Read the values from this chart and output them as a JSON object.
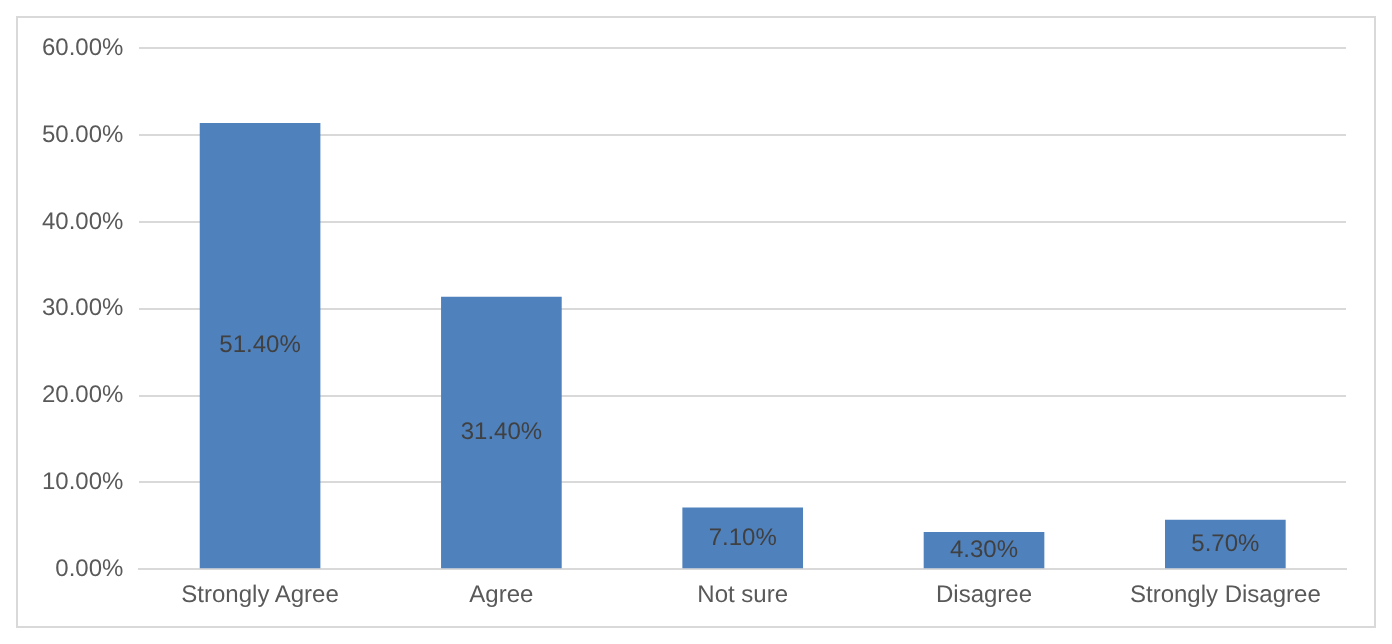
{
  "chart_data": {
    "type": "bar",
    "categories": [
      "Strongly Agree",
      "Agree",
      "Not sure",
      "Disagree",
      "Strongly Disagree"
    ],
    "values": [
      51.4,
      31.4,
      7.1,
      4.3,
      5.7
    ],
    "value_labels": [
      "51.40%",
      "31.40%",
      "7.10%",
      "4.30%",
      "5.70%"
    ],
    "color": "#4f81bd",
    "ylim": [
      0,
      60
    ],
    "yticks": [
      {
        "value": 0,
        "label": "0.00%"
      },
      {
        "value": 10,
        "label": "10.00%"
      },
      {
        "value": 20,
        "label": "20.00%"
      },
      {
        "value": 30,
        "label": "30.00%"
      },
      {
        "value": 40,
        "label": "40.00%"
      },
      {
        "value": 50,
        "label": "50.00%"
      },
      {
        "value": 60,
        "label": "60.00%"
      }
    ],
    "grid": "y"
  }
}
